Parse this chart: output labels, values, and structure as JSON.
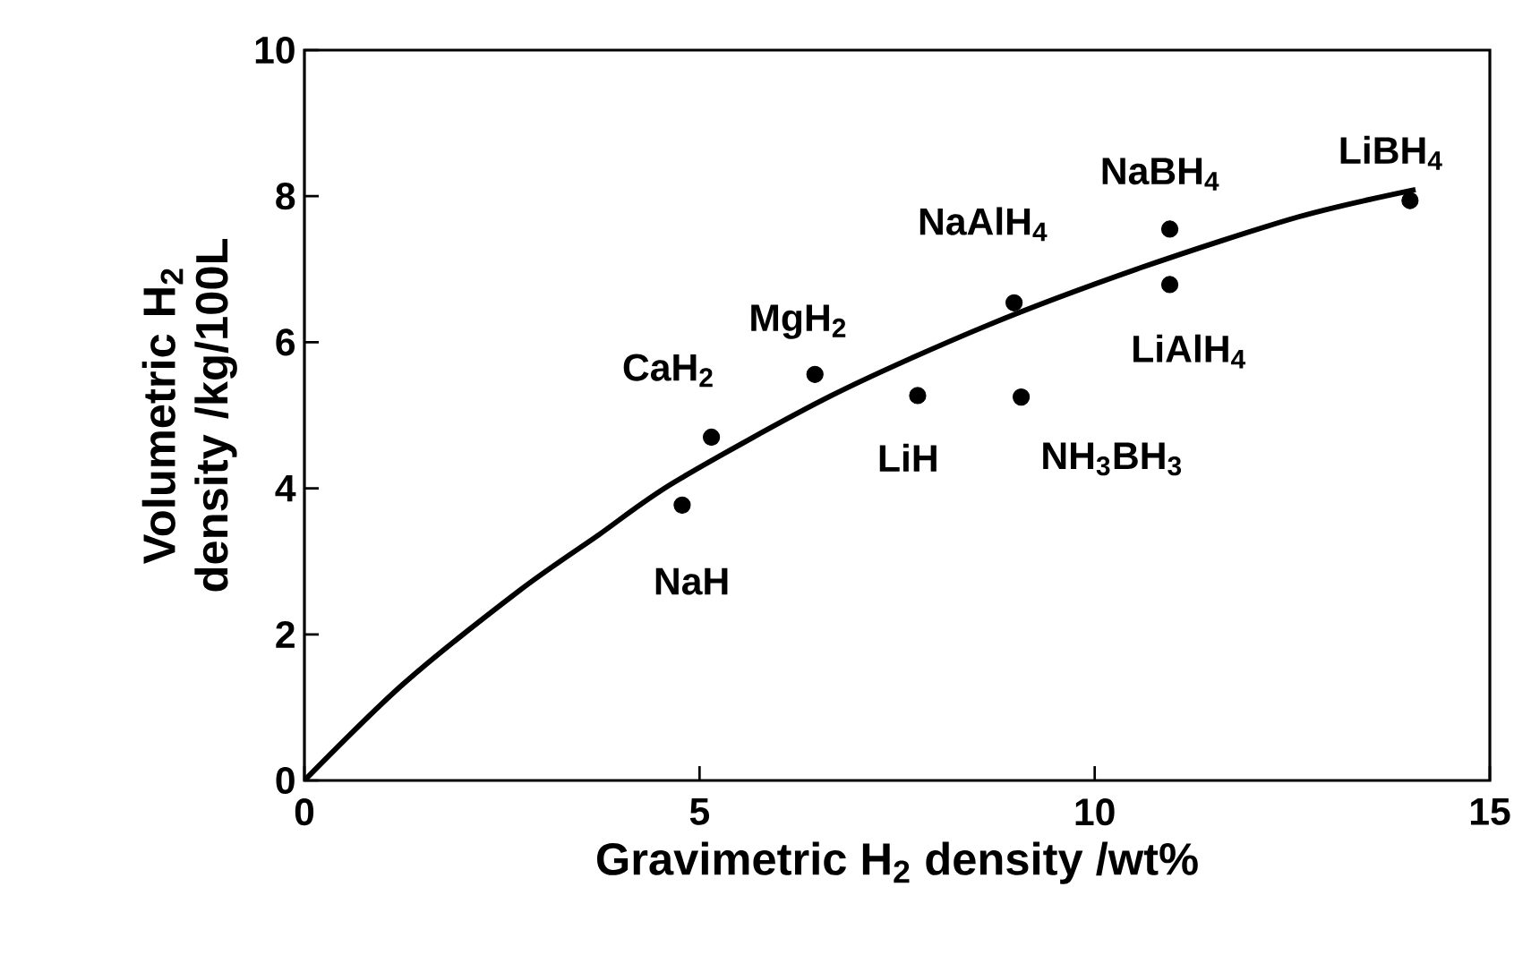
{
  "chart_data": {
    "type": "scatter",
    "xlabel": "Gravimetric H$_{2}$ density /wt%",
    "ylabel": "Volumetric H$_{2}$ density /kg/100L",
    "xlim": [
      0,
      15
    ],
    "ylim": [
      0,
      10
    ],
    "xticks": [
      0,
      5,
      10,
      15
    ],
    "yticks": [
      0,
      2,
      4,
      6,
      8,
      10
    ],
    "series": [
      {
        "type": "line",
        "color": "#000000",
        "marker": "none",
        "x": [
          0,
          1.25,
          2.72,
          3.72,
          4.69,
          6.67,
          8.64,
          10.61,
          12.59,
          14.06
        ],
        "values": [
          0,
          1.32,
          2.6,
          3.36,
          4.09,
          5.27,
          6.23,
          7.03,
          7.72,
          8.09
        ]
      },
      {
        "color": "#000000",
        "marker": "circle",
        "x": [
          4.78,
          5.15,
          6.46,
          7.76,
          8.98,
          9.07,
          10.95,
          10.95,
          13.99
        ],
        "values": [
          3.77,
          4.7,
          5.56,
          5.27,
          6.54,
          5.25,
          7.55,
          6.79,
          7.94
        ]
      }
    ],
    "annotations": [
      {
        "text": "NaH",
        "x": 4.78,
        "y": 3.77
      },
      {
        "text": "CaH$_{2}$",
        "x": 5.15,
        "y": 4.7
      },
      {
        "text": "MgH$_{2}$",
        "x": 6.46,
        "y": 5.56
      },
      {
        "text": "LiH",
        "x": 7.76,
        "y": 5.27
      },
      {
        "text": "NaAlH$_{4}$",
        "x": 8.98,
        "y": 6.54
      },
      {
        "text": "NH$_{3}$BH$_{3}$",
        "x": 9.07,
        "y": 5.25
      },
      {
        "text": "NaBH$_{4}$",
        "x": 10.95,
        "y": 7.55
      },
      {
        "text": "LiAlH$_{4}$",
        "x": 10.95,
        "y": 6.79
      },
      {
        "text": "LiBH$_{4}$",
        "x": 13.99,
        "y": 7.94
      }
    ]
  }
}
